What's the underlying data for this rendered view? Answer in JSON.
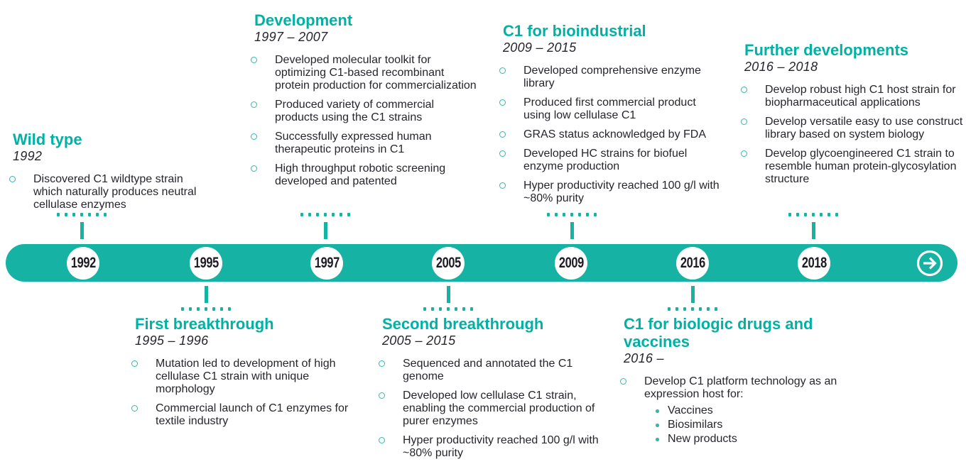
{
  "colors": {
    "accent": "#16b2a4",
    "heading": "#00b1a4",
    "text_dark": "#27252c",
    "year_text": "#1c1b24",
    "background": "#ffffff"
  },
  "timeline": {
    "years": [
      "1992",
      "1995",
      "1997",
      "2005",
      "2009",
      "2016",
      "2018"
    ],
    "arrow_icon": "arrow-right-in-circle"
  },
  "sections": [
    {
      "id": "wild-type",
      "side": "top",
      "title": "Wild type",
      "period": "1992",
      "bullets": [
        {
          "text": "Discovered C1 wildtype strain which naturally produces neutral cellulase enzymes"
        }
      ]
    },
    {
      "id": "development",
      "side": "top",
      "title": "Development",
      "period": "1997 – 2007",
      "bullets": [
        {
          "text": "Developed molecular toolkit for optimizing C1-based recombinant protein production for commercialization"
        },
        {
          "text": "Produced variety of commercial products using the C1 strains"
        },
        {
          "text": "Successfully expressed human therapeutic proteins in C1"
        },
        {
          "text": "High throughput robotic screening developed and patented"
        }
      ]
    },
    {
      "id": "bioindustrial",
      "side": "top",
      "title": "C1 for bioindustrial",
      "period": "2009 – 2015",
      "bullets": [
        {
          "text": "Developed comprehensive enzyme library"
        },
        {
          "text": "Produced first commercial product using low cellulase C1"
        },
        {
          "text": "GRAS status acknowledged by FDA"
        },
        {
          "text": "Developed HC strains for biofuel enzyme production"
        },
        {
          "text": "Hyper productivity reached 100 g/l with ~80% purity"
        }
      ]
    },
    {
      "id": "further-developments",
      "side": "top",
      "title": "Further developments",
      "period": "2016 – 2018",
      "bullets": [
        {
          "text": "Develop robust high C1 host strain for biopharmaceutical applications"
        },
        {
          "text": "Develop versatile easy to use construct library based on system biology"
        },
        {
          "text": "Develop glycoengineered C1 strain to resemble human protein-glycosylation structure"
        }
      ]
    },
    {
      "id": "first-breakthrough",
      "side": "bottom",
      "title": "First breakthrough",
      "period": "1995 – 1996",
      "bullets": [
        {
          "text": "Mutation led to development of high cellulase C1 strain with unique morphology"
        },
        {
          "text": "Commercial launch of C1 enzymes for textile industry"
        }
      ]
    },
    {
      "id": "second-breakthrough",
      "side": "bottom",
      "title": "Second breakthrough",
      "period": "2005 – 2015",
      "bullets": [
        {
          "text": "Sequenced and annotated the C1 genome"
        },
        {
          "text": "Developed low cellulase C1 strain, enabling the commercial production of purer enzymes"
        },
        {
          "text": "Hyper productivity reached 100 g/l with ~80% purity"
        }
      ]
    },
    {
      "id": "biologic-drugs",
      "side": "bottom",
      "title": "C1 for biologic drugs and vaccines",
      "period": "2016 –",
      "bullets": [
        {
          "text": "Develop C1 platform technology as an expression host for:",
          "sub": [
            "Vaccines",
            "Biosimilars",
            "New products"
          ]
        }
      ]
    }
  ]
}
